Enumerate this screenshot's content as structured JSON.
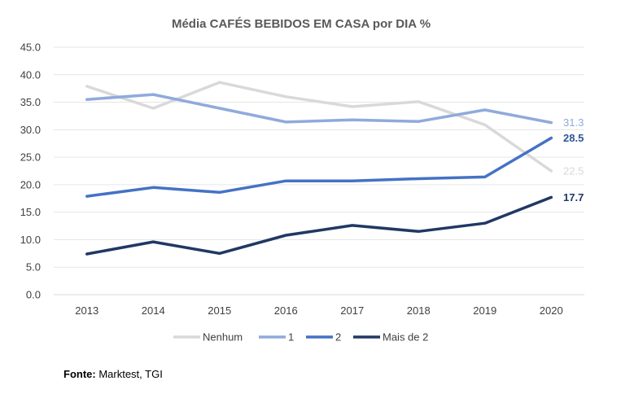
{
  "chart_data": {
    "type": "line",
    "title": "Média CAFÉS BEBIDOS EM CASA por DIA %",
    "categories": [
      "2013",
      "2014",
      "2015",
      "2016",
      "2017",
      "2018",
      "2019",
      "2020"
    ],
    "ylim": [
      0,
      45
    ],
    "yticks": [
      "0.0",
      "5.0",
      "10.0",
      "15.0",
      "20.0",
      "25.0",
      "30.0",
      "35.0",
      "40.0",
      "45.0"
    ],
    "grid": true,
    "legend_position": "bottom",
    "series": [
      {
        "name": "Nenhum",
        "color": "#d9d9d9",
        "values": [
          37.9,
          33.9,
          38.6,
          36.0,
          34.2,
          35.1,
          30.9,
          22.5
        ],
        "end_label": "22.5",
        "label_bold": false
      },
      {
        "name": "1",
        "color": "#8faadc",
        "values": [
          35.5,
          36.4,
          33.9,
          31.4,
          31.8,
          31.5,
          33.6,
          31.3
        ],
        "end_label": "31.3",
        "label_bold": false
      },
      {
        "name": "2",
        "color": "#4472c4",
        "values": [
          17.9,
          19.5,
          18.6,
          20.7,
          20.7,
          21.1,
          21.4,
          28.5
        ],
        "end_label": "28.5",
        "label_bold": true
      },
      {
        "name": "Mais de 2",
        "color": "#203864",
        "values": [
          7.4,
          9.6,
          7.5,
          10.8,
          12.6,
          11.5,
          13.0,
          17.7
        ],
        "end_label": "17.7",
        "label_bold": true
      }
    ]
  },
  "source": {
    "label": "Fonte:",
    "text": " Marktest, TGI"
  }
}
